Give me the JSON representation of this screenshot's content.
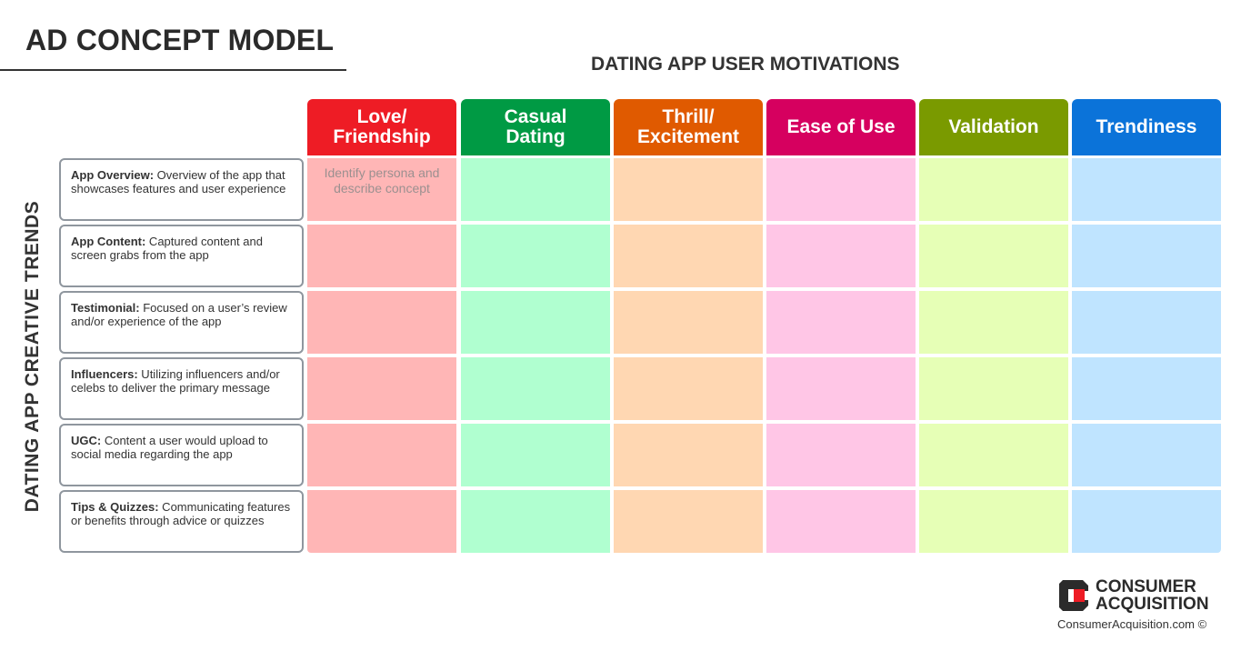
{
  "title": "AD CONCEPT MODEL",
  "top_header": "DATING APP USER MOTIVATIONS",
  "side_header": "DATING APP CREATIVE TRENDS",
  "columns": [
    {
      "line1": "Love/",
      "line2": "Friendship",
      "header_color": "#ee1c25",
      "cell_color": "#ffb6b6"
    },
    {
      "line1": "Casual",
      "line2": "Dating",
      "header_color": "#009a44",
      "cell_color": "#b0ffd0"
    },
    {
      "line1": "Thrill/",
      "line2": "Excitement",
      "header_color": "#e05a00",
      "cell_color": "#ffd7b2"
    },
    {
      "line1": "Ease of Use",
      "line2": "",
      "header_color": "#d6005f",
      "cell_color": "#ffc6e6"
    },
    {
      "line1": "Validation",
      "line2": "",
      "header_color": "#7a9a00",
      "cell_color": "#e6ffb6"
    },
    {
      "line1": "Trendiness",
      "line2": "",
      "header_color": "#0b73d9",
      "cell_color": "#bfe4ff"
    }
  ],
  "rows": [
    {
      "bold": "App Overview:",
      "text": " Overview of the app that showcases features and user experience"
    },
    {
      "bold": "App Content:",
      "text": " Captured content and screen grabs from the app"
    },
    {
      "bold": "Testimonial:",
      "text": " Focused on a user’s review and/or experience of the app"
    },
    {
      "bold": "Influencers:",
      "text": " Utilizing influencers and/or celebs to deliver the primary message"
    },
    {
      "bold": "UGC:",
      "text": " Content a user would upload to social media regarding the app"
    },
    {
      "bold": "Tips & Quizzes:",
      "text": " Communicating features or benefits through advice or quizzes"
    }
  ],
  "cell_placeholder": "Identify persona and describe concept",
  "brand": {
    "line1": "CONSUMER",
    "line2": "ACQUISITION",
    "url": "ConsumerAcquisition.com ©",
    "logo_color": "#2b2b2b",
    "logo_accent": "#ee1c25"
  }
}
